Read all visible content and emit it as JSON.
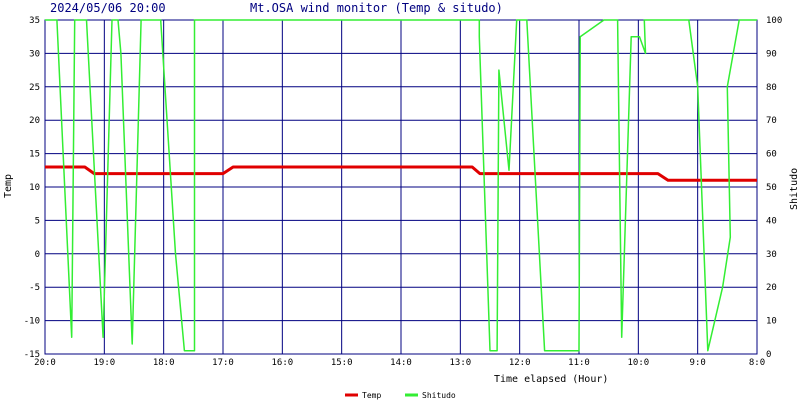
{
  "header": {
    "datetime": "2024/05/06 20:00",
    "title": "Mt.OSA wind monitor (Temp & situdo)"
  },
  "chart_data": {
    "type": "line",
    "xlabel": "Time elapsed (Hour)",
    "ylabel_left": "Temp",
    "ylabel_right": "Shitudo",
    "ylim_left": [
      -15,
      35
    ],
    "yticks_left": [
      "-15",
      "-10",
      "-5",
      "0",
      "5",
      "10",
      "15",
      "20",
      "25",
      "30",
      "35"
    ],
    "ylim_right": [
      0,
      100
    ],
    "yticks_right": [
      "0",
      "10",
      "20",
      "30",
      "40",
      "50",
      "60",
      "70",
      "80",
      "90",
      "100"
    ],
    "xlim": [
      20,
      8
    ],
    "xticks": [
      "20:0",
      "19:0",
      "18:0",
      "17:0",
      "16:0",
      "15:0",
      "14:0",
      "13:0",
      "12:0",
      "11:0",
      "10:0",
      "9:0",
      "8:0"
    ],
    "grid": true,
    "legend_position": "bottom",
    "colors": {
      "background": "#ffffff",
      "grid": "#000080",
      "temp": "#e00000",
      "shitudo": "#33ee33",
      "text": "#000000",
      "header": "#000080"
    },
    "series": [
      {
        "name": "Temp",
        "axis": "left",
        "x": [
          20.0,
          19.33,
          19.17,
          18.3,
          17.0,
          16.83,
          12.8,
          12.67,
          9.67,
          9.5,
          8.0
        ],
        "y": [
          13,
          13,
          12,
          12,
          12,
          13,
          13,
          12,
          12,
          11,
          11
        ]
      },
      {
        "name": "Shitudo",
        "axis": "right",
        "x": [
          20.0,
          19.8,
          19.55,
          19.5,
          19.3,
          19.02,
          18.87,
          18.77,
          18.72,
          18.53,
          18.38,
          18.3,
          18.3,
          18.05,
          17.8,
          17.65,
          17.48,
          17.48,
          16.5,
          15.0,
          13.0,
          12.68,
          12.68,
          12.5,
          12.38,
          12.35,
          12.18,
          12.05,
          11.88,
          11.58,
          11.35,
          11.0,
          10.98,
          10.58,
          10.35,
          10.28,
          10.12,
          9.98,
          9.88,
          9.9,
          9.65,
          9.15,
          9.0,
          8.83,
          8.58,
          8.45,
          8.5,
          8.3,
          8.0
        ],
        "y": [
          100,
          100,
          5,
          100,
          100,
          5,
          100,
          100,
          90,
          3,
          100,
          100,
          100,
          100,
          30,
          1,
          1,
          100,
          100,
          100,
          100,
          100,
          95,
          1,
          1,
          85,
          55,
          100,
          100,
          1,
          1,
          1,
          95,
          100,
          100,
          5,
          95,
          95,
          90,
          100,
          100,
          100,
          80,
          1,
          20,
          35,
          80,
          100,
          100
        ]
      }
    ]
  }
}
